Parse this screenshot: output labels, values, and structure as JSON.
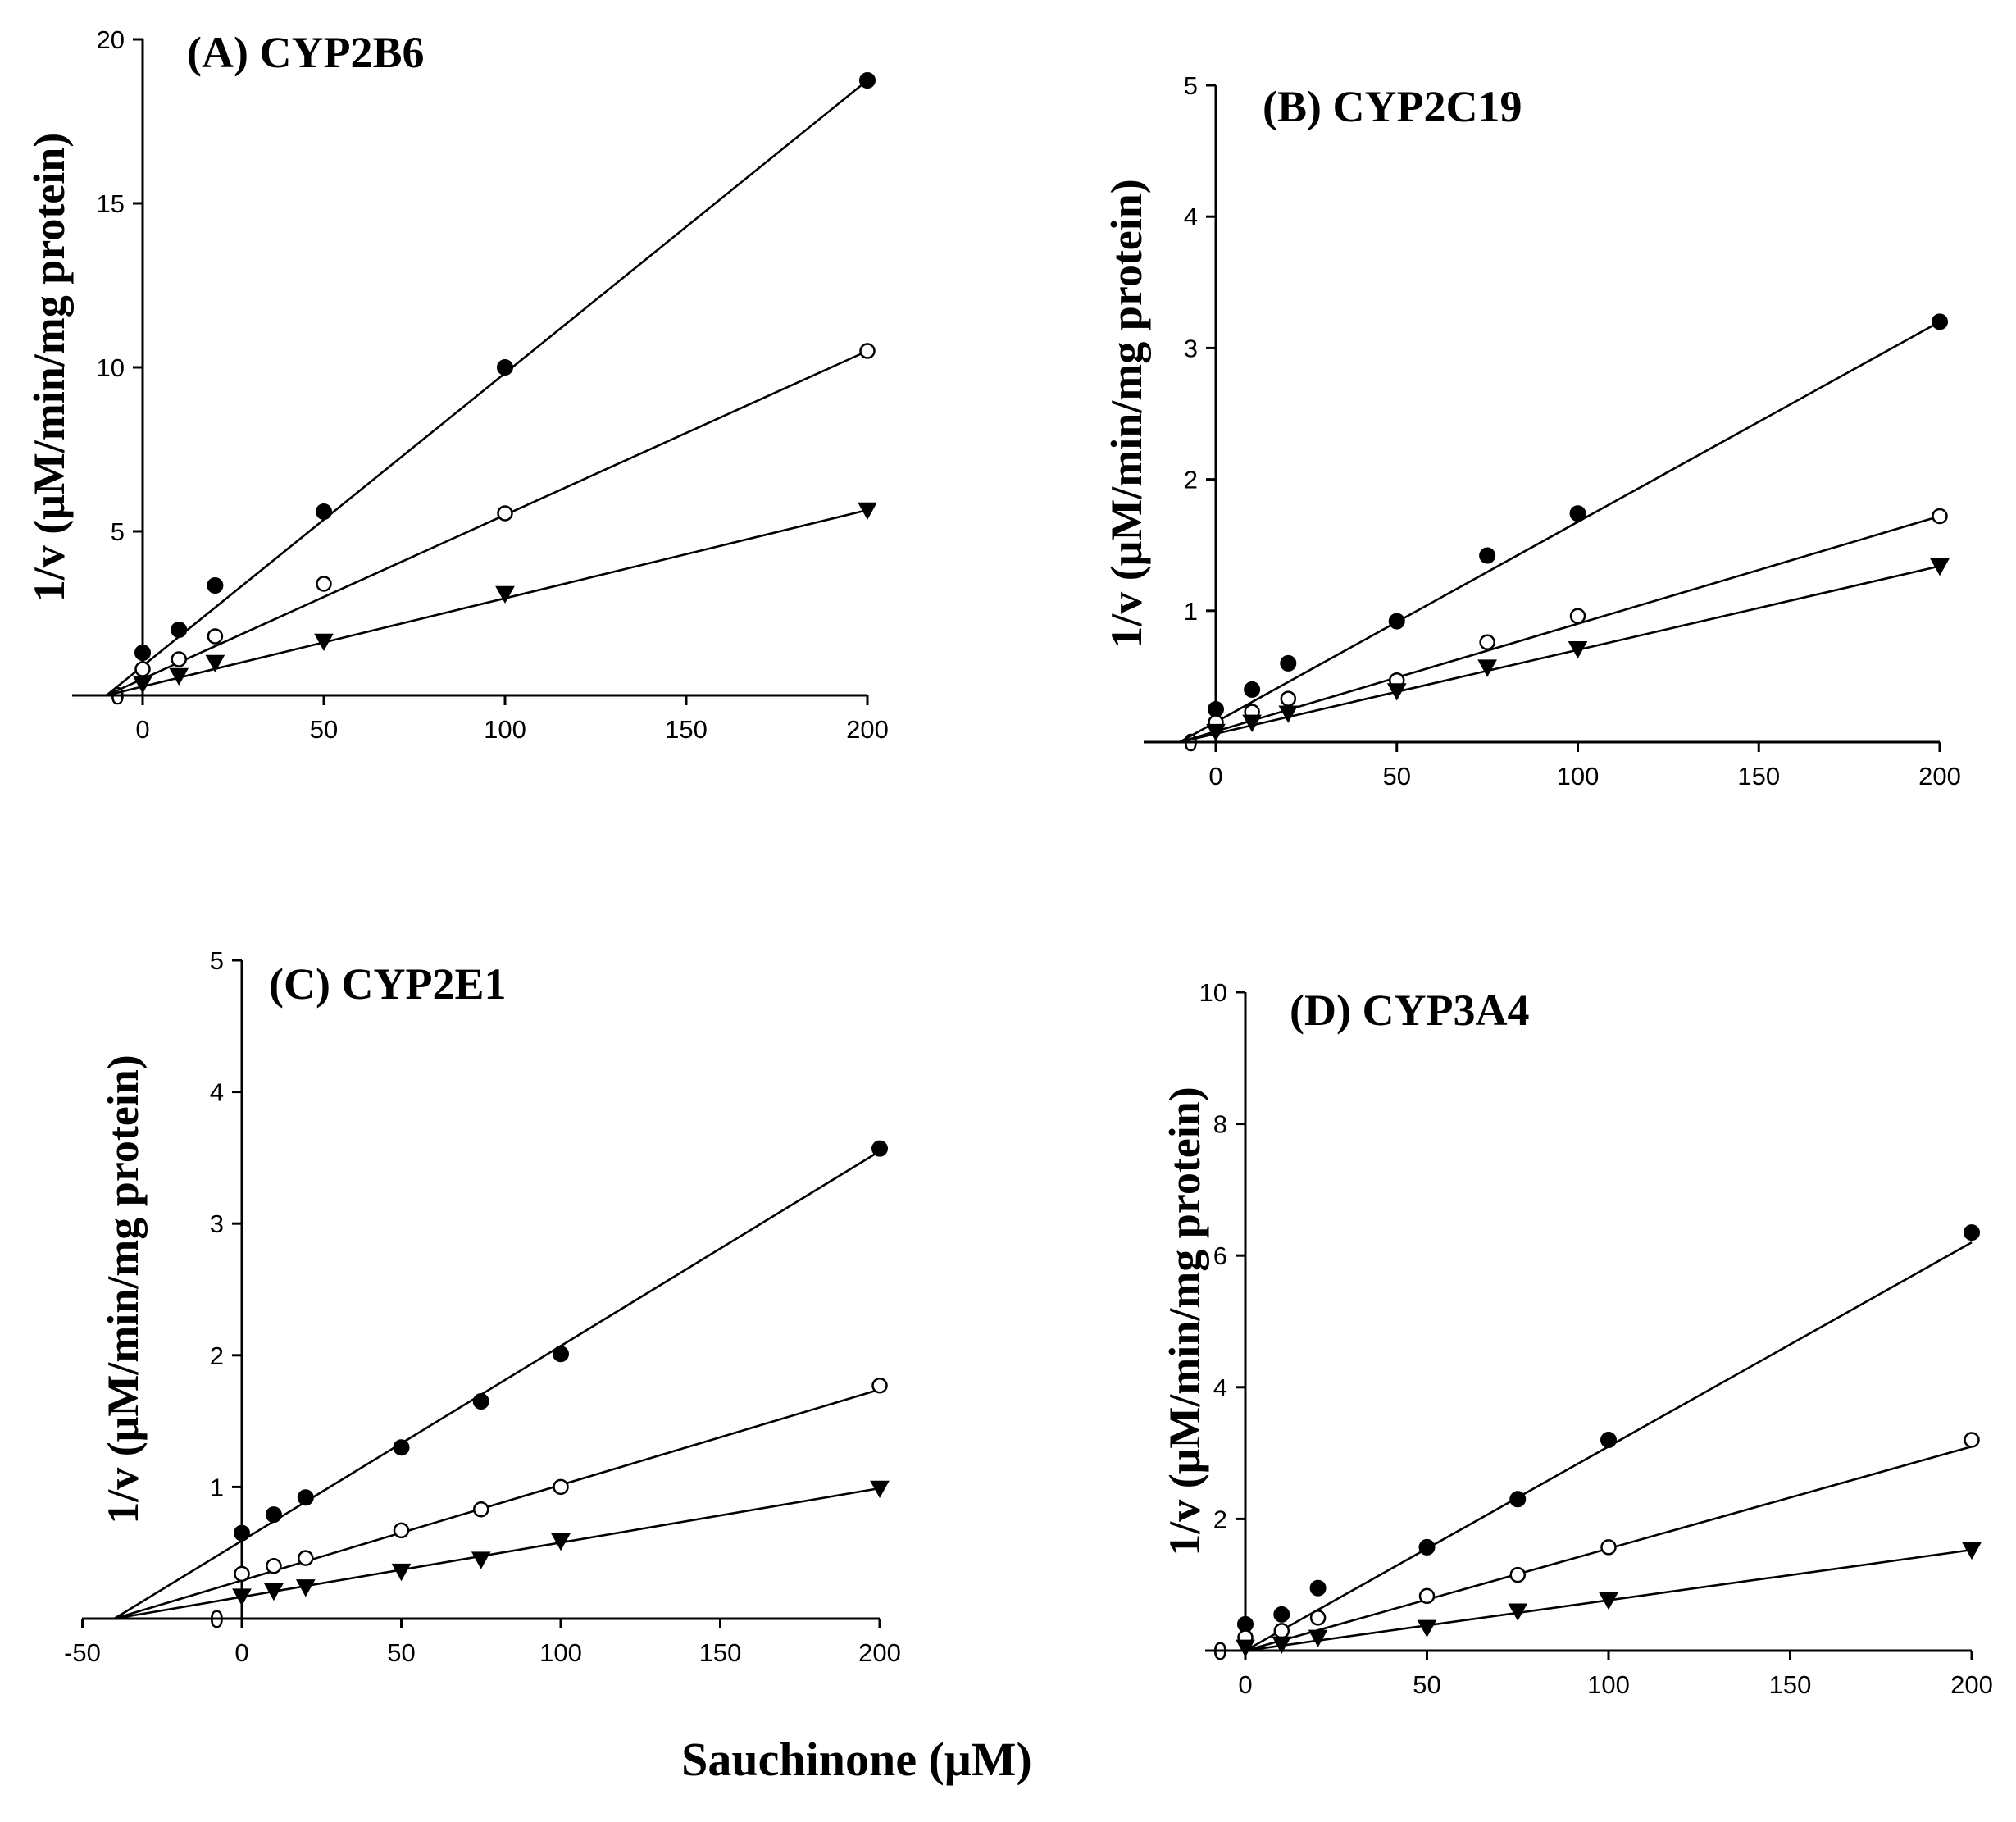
{
  "xlabel": "Sauchinone (μM)",
  "chart_data": [
    {
      "type": "scatter",
      "title": "(A) CYP2B6",
      "ylabel": "1/v (μM/min/mg protein)",
      "xlim": [
        -10,
        200
      ],
      "ylim": [
        0,
        20
      ],
      "xticks": [
        "0",
        "50",
        "100",
        "150",
        "200"
      ],
      "yticks": [
        "0",
        "5",
        "10",
        "15",
        "20"
      ],
      "x": [
        0,
        10,
        20,
        50,
        100,
        200
      ],
      "series": [
        {
          "marker": "filled-circle",
          "values": [
            1.3,
            2.0,
            3.35,
            5.6,
            10.0,
            18.75
          ],
          "fit": [
            [
              -10,
              0
            ],
            [
              200,
              18.75
            ]
          ]
        },
        {
          "marker": "open-circle",
          "values": [
            0.8,
            1.1,
            1.8,
            3.4,
            5.55,
            10.5
          ],
          "fit": [
            [
              -10,
              0
            ],
            [
              200,
              10.5
            ]
          ]
        },
        {
          "marker": "filled-triangle-down",
          "values": [
            0.35,
            0.6,
            1.0,
            1.65,
            3.1,
            5.65
          ],
          "fit": [
            [
              -10,
              0
            ],
            [
              200,
              5.65
            ]
          ]
        }
      ]
    },
    {
      "type": "scatter",
      "title": "(B) CYP2C19",
      "ylabel": "1/v (μM/min/mg protein)",
      "xlim": [
        -10,
        200
      ],
      "ylim": [
        0,
        5
      ],
      "xticks": [
        "0",
        "50",
        "100",
        "150",
        "200"
      ],
      "yticks": [
        "0",
        "1",
        "2",
        "3",
        "4",
        "5"
      ],
      "x": [
        0,
        10,
        20,
        50,
        75,
        100,
        200
      ],
      "series": [
        {
          "marker": "filled-circle",
          "values": [
            0.25,
            0.4,
            0.6,
            0.92,
            1.42,
            1.74,
            3.2
          ],
          "fit": [
            [
              -10,
              0
            ],
            [
              200,
              3.2
            ]
          ]
        },
        {
          "marker": "open-circle",
          "values": [
            0.15,
            0.23,
            0.33,
            0.47,
            0.76,
            0.96,
            1.72
          ],
          "fit": [
            [
              -10,
              0
            ],
            [
              200,
              1.72
            ]
          ]
        },
        {
          "marker": "filled-triangle-down",
          "values": [
            0.08,
            0.15,
            0.22,
            0.39,
            0.57,
            0.71,
            1.34
          ],
          "fit": [
            [
              -10,
              0
            ],
            [
              200,
              1.34
            ]
          ]
        }
      ]
    },
    {
      "type": "scatter",
      "title": "(C) CYP2E1",
      "ylabel": "1/v (μM/min/mg protein)",
      "xlim": [
        -50,
        200
      ],
      "ylim": [
        0,
        5
      ],
      "xticks": [
        "-50",
        "0",
        "50",
        "100",
        "150",
        "200"
      ],
      "yticks": [
        "0",
        "1",
        "2",
        "3",
        "4",
        "5"
      ],
      "x": [
        0,
        10,
        20,
        50,
        75,
        100,
        200
      ],
      "series": [
        {
          "marker": "filled-circle",
          "values": [
            0.65,
            0.79,
            0.92,
            1.3,
            1.65,
            2.01,
            3.57
          ],
          "fit": [
            [
              -40,
              0
            ],
            [
              200,
              3.55
            ]
          ]
        },
        {
          "marker": "open-circle",
          "values": [
            0.34,
            0.4,
            0.46,
            0.67,
            0.83,
            1.0,
            1.77
          ],
          "fit": [
            [
              -40,
              0
            ],
            [
              200,
              1.74
            ]
          ]
        },
        {
          "marker": "filled-triangle-down",
          "values": [
            0.17,
            0.21,
            0.24,
            0.36,
            0.45,
            0.59,
            0.99
          ],
          "fit": [
            [
              -40,
              0
            ],
            [
              200,
              0.99
            ]
          ]
        }
      ]
    },
    {
      "type": "scatter",
      "title": "(D) CYP3A4",
      "ylabel": "1/v (μM/min/mg protein)",
      "xlim": [
        -10,
        200
      ],
      "ylim": [
        0,
        10
      ],
      "xticks": [
        "0",
        "50",
        "100",
        "150",
        "200"
      ],
      "yticks": [
        "0",
        "2",
        "4",
        "6",
        "8",
        "10"
      ],
      "x": [
        0,
        10,
        20,
        50,
        75,
        100,
        200
      ],
      "series": [
        {
          "marker": "filled-circle",
          "values": [
            0.4,
            0.55,
            0.95,
            1.57,
            2.3,
            3.2,
            6.35
          ],
          "fit": [
            [
              0,
              0
            ],
            [
              200,
              6.2
            ]
          ]
        },
        {
          "marker": "open-circle",
          "values": [
            0.2,
            0.3,
            0.5,
            0.83,
            1.15,
            1.57,
            3.2
          ],
          "fit": [
            [
              0,
              0
            ],
            [
              200,
              3.1
            ]
          ]
        },
        {
          "marker": "filled-triangle-down",
          "values": [
            0.05,
            0.1,
            0.2,
            0.35,
            0.6,
            0.77,
            1.53
          ],
          "fit": [
            [
              0,
              0
            ],
            [
              200,
              1.53
            ]
          ]
        }
      ]
    }
  ]
}
